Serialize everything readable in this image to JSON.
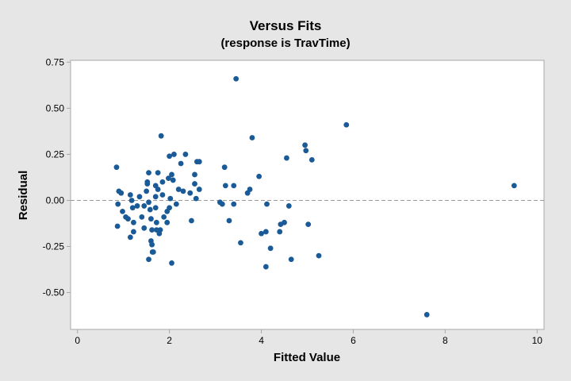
{
  "chart_data": {
    "type": "scatter",
    "title": "Versus Fits",
    "subtitle": "(response is TravTime)",
    "xlabel": "Fitted Value",
    "ylabel": "Residual",
    "xlim": [
      -0.15,
      10.15
    ],
    "ylim": [
      -0.7,
      0.76
    ],
    "xticks": [
      0,
      2,
      4,
      6,
      8,
      10
    ],
    "xtick_labels": [
      "0",
      "2",
      "4",
      "6",
      "8",
      "10"
    ],
    "yticks": [
      -0.5,
      -0.25,
      0.0,
      0.25,
      0.5,
      0.75
    ],
    "ytick_labels": [
      "-0.50",
      "-0.25",
      "0.00",
      "0.25",
      "0.50",
      "0.75"
    ],
    "reference_line": {
      "y": 0,
      "style": "dashed",
      "color": "#999999"
    },
    "grid": false,
    "colors": {
      "marker": "#1a5a96",
      "plot_background": "#ffffff",
      "figure_background": "#e6e6e6",
      "axis": "#a8a8a8"
    },
    "points": [
      [
        0.85,
        0.18
      ],
      [
        0.9,
        0.05
      ],
      [
        0.95,
        0.04
      ],
      [
        0.88,
        -0.02
      ],
      [
        0.98,
        -0.06
      ],
      [
        0.87,
        -0.14
      ],
      [
        1.05,
        -0.09
      ],
      [
        1.1,
        -0.1
      ],
      [
        1.15,
        0.03
      ],
      [
        1.18,
        0.0
      ],
      [
        1.2,
        -0.04
      ],
      [
        1.22,
        -0.12
      ],
      [
        1.15,
        -0.2
      ],
      [
        1.22,
        -0.17
      ],
      [
        1.3,
        -0.03
      ],
      [
        1.35,
        0.02
      ],
      [
        1.4,
        -0.09
      ],
      [
        1.45,
        -0.03
      ],
      [
        1.45,
        -0.15
      ],
      [
        1.5,
        0.05
      ],
      [
        1.52,
        0.09
      ],
      [
        1.52,
        0.1
      ],
      [
        1.55,
        0.15
      ],
      [
        1.55,
        -0.01
      ],
      [
        1.58,
        -0.05
      ],
      [
        1.6,
        -0.1
      ],
      [
        1.6,
        -0.22
      ],
      [
        1.62,
        -0.16
      ],
      [
        1.55,
        -0.32
      ],
      [
        1.62,
        -0.24
      ],
      [
        1.63,
        -0.28
      ],
      [
        1.65,
        -0.28
      ],
      [
        1.7,
        0.08
      ],
      [
        1.7,
        0.02
      ],
      [
        1.7,
        -0.04
      ],
      [
        1.72,
        -0.12
      ],
      [
        1.72,
        -0.16
      ],
      [
        1.75,
        0.15
      ],
      [
        1.75,
        0.06
      ],
      [
        1.78,
        -0.18
      ],
      [
        1.8,
        -0.16
      ],
      [
        1.82,
        0.35
      ],
      [
        1.85,
        0.1
      ],
      [
        1.85,
        0.03
      ],
      [
        1.88,
        -0.09
      ],
      [
        1.95,
        -0.06
      ],
      [
        1.95,
        -0.12
      ],
      [
        1.98,
        0.12
      ],
      [
        2.0,
        -0.04
      ],
      [
        2.02,
        0.01
      ],
      [
        2.0,
        0.24
      ],
      [
        2.05,
        0.14
      ],
      [
        2.08,
        0.11
      ],
      [
        2.1,
        0.25
      ],
      [
        2.05,
        -0.34
      ],
      [
        2.15,
        -0.02
      ],
      [
        2.2,
        0.06
      ],
      [
        2.25,
        0.2
      ],
      [
        2.3,
        0.05
      ],
      [
        2.35,
        0.25
      ],
      [
        2.45,
        0.04
      ],
      [
        2.48,
        -0.11
      ],
      [
        2.55,
        0.14
      ],
      [
        2.55,
        0.09
      ],
      [
        2.58,
        0.01
      ],
      [
        2.6,
        0.21
      ],
      [
        2.65,
        0.21
      ],
      [
        2.65,
        0.06
      ],
      [
        3.1,
        -0.01
      ],
      [
        3.15,
        -0.02
      ],
      [
        3.2,
        0.18
      ],
      [
        3.22,
        0.08
      ],
      [
        3.3,
        -0.11
      ],
      [
        3.4,
        0.08
      ],
      [
        3.4,
        -0.02
      ],
      [
        3.45,
        0.66
      ],
      [
        3.55,
        -0.23
      ],
      [
        3.7,
        0.04
      ],
      [
        3.75,
        0.06
      ],
      [
        3.8,
        0.34
      ],
      [
        3.95,
        0.13
      ],
      [
        4.0,
        -0.18
      ],
      [
        4.1,
        -0.17
      ],
      [
        4.12,
        -0.02
      ],
      [
        4.1,
        -0.36
      ],
      [
        4.2,
        -0.26
      ],
      [
        4.4,
        -0.17
      ],
      [
        4.42,
        -0.13
      ],
      [
        4.5,
        -0.12
      ],
      [
        4.55,
        0.23
      ],
      [
        4.6,
        -0.03
      ],
      [
        4.65,
        -0.32
      ],
      [
        4.95,
        0.3
      ],
      [
        4.97,
        0.27
      ],
      [
        5.02,
        -0.13
      ],
      [
        5.1,
        0.22
      ],
      [
        5.25,
        -0.3
      ],
      [
        5.85,
        0.41
      ],
      [
        7.6,
        -0.62
      ],
      [
        9.5,
        0.08
      ]
    ]
  }
}
